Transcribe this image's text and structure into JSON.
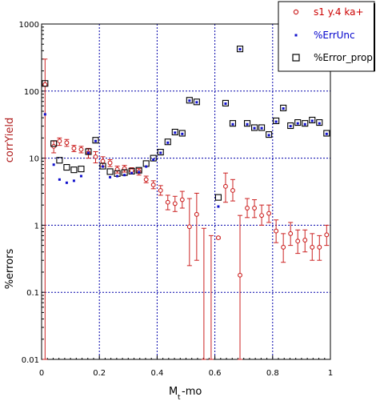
{
  "chart_data": {
    "type": "scatter",
    "xlabel": "M",
    "xlabel_sub": "t",
    "xlabel_suffix": "-mo",
    "ylabel_top": "corrYield",
    "ylabel_bottom": "%errors",
    "xlim": [
      0,
      1
    ],
    "ylim": [
      0.01,
      1000
    ],
    "yscale": "log",
    "grid": true,
    "legend_position": "top-right",
    "x_ticks": [
      "0",
      "0.2",
      "0.4",
      "0.6",
      "0.8",
      "1"
    ],
    "x_tick_values": [
      0,
      0.2,
      0.4,
      0.6,
      0.8,
      1
    ],
    "y_ticks": [
      "0.01",
      "0.1",
      "1",
      "10",
      "100",
      "1000"
    ],
    "y_tick_values": [
      0.01,
      0.1,
      1,
      10,
      100,
      1000
    ],
    "colors": {
      "s1": "#cc2222",
      "errunc": "#1010cc",
      "errprop": "#000000",
      "grid": "#0000aa"
    },
    "series": [
      {
        "name": "s1 y.4 ka+",
        "marker": "open-circle",
        "points": [
          {
            "x": 0.012,
            "y": 125,
            "lo": 0.01,
            "hi": 300
          },
          {
            "x": 0.042,
            "y": 15,
            "lo": 12,
            "hi": 18
          },
          {
            "x": 0.062,
            "y": 18,
            "lo": 15.5,
            "hi": 20
          },
          {
            "x": 0.087,
            "y": 17,
            "lo": 15,
            "hi": 19
          },
          {
            "x": 0.112,
            "y": 14,
            "lo": 12.5,
            "hi": 15.5
          },
          {
            "x": 0.137,
            "y": 13.5,
            "lo": 12,
            "hi": 15
          },
          {
            "x": 0.162,
            "y": 12,
            "lo": 10,
            "hi": 14
          },
          {
            "x": 0.187,
            "y": 10.5,
            "lo": 8.5,
            "hi": 12.5
          },
          {
            "x": 0.212,
            "y": 9,
            "lo": 7.5,
            "hi": 10.5
          },
          {
            "x": 0.237,
            "y": 8.5,
            "lo": 7.5,
            "hi": 9.5
          },
          {
            "x": 0.262,
            "y": 6.8,
            "lo": 6,
            "hi": 7.6
          },
          {
            "x": 0.287,
            "y": 7,
            "lo": 6.2,
            "hi": 7.8
          },
          {
            "x": 0.312,
            "y": 6.5,
            "lo": 5.8,
            "hi": 7.2
          },
          {
            "x": 0.337,
            "y": 6.3,
            "lo": 5.6,
            "hi": 7.0
          },
          {
            "x": 0.362,
            "y": 4.8,
            "lo": 4.3,
            "hi": 5.4
          },
          {
            "x": 0.387,
            "y": 4,
            "lo": 3.5,
            "hi": 4.6
          },
          {
            "x": 0.412,
            "y": 3.3,
            "lo": 2.8,
            "hi": 3.9
          },
          {
            "x": 0.437,
            "y": 2.2,
            "lo": 1.7,
            "hi": 2.8
          },
          {
            "x": 0.462,
            "y": 2.1,
            "lo": 1.6,
            "hi": 2.7
          },
          {
            "x": 0.487,
            "y": 2.4,
            "lo": 1.8,
            "hi": 3.2
          },
          {
            "x": 0.512,
            "y": 0.95,
            "lo": 0.25,
            "hi": 2.5
          },
          {
            "x": 0.537,
            "y": 1.45,
            "lo": 0.3,
            "hi": 3.0
          },
          {
            "x": 0.562,
            "y": 0.01,
            "lo": 0.01,
            "hi": 0.9
          },
          {
            "x": 0.587,
            "y": 0.01,
            "lo": 0.01,
            "hi": 0.7
          },
          {
            "x": 0.612,
            "y": 0.65,
            "lo": 0.63,
            "hi": 0.67
          },
          {
            "x": 0.637,
            "y": 3.8,
            "lo": 2.2,
            "hi": 6.0
          },
          {
            "x": 0.662,
            "y": 3.3,
            "lo": 2.3,
            "hi": 4.8
          },
          {
            "x": 0.687,
            "y": 0.18,
            "lo": 0.01,
            "hi": 1.4
          },
          {
            "x": 0.712,
            "y": 1.8,
            "lo": 1.3,
            "hi": 2.5
          },
          {
            "x": 0.737,
            "y": 1.8,
            "lo": 1.3,
            "hi": 2.4
          },
          {
            "x": 0.762,
            "y": 1.4,
            "lo": 1.0,
            "hi": 2.0
          },
          {
            "x": 0.787,
            "y": 1.5,
            "lo": 1.1,
            "hi": 2.0
          },
          {
            "x": 0.812,
            "y": 0.82,
            "lo": 0.55,
            "hi": 1.2
          },
          {
            "x": 0.837,
            "y": 0.47,
            "lo": 0.28,
            "hi": 0.75
          },
          {
            "x": 0.862,
            "y": 0.75,
            "lo": 0.5,
            "hi": 1.1
          },
          {
            "x": 0.887,
            "y": 0.58,
            "lo": 0.38,
            "hi": 0.85
          },
          {
            "x": 0.912,
            "y": 0.6,
            "lo": 0.4,
            "hi": 0.85
          },
          {
            "x": 0.937,
            "y": 0.47,
            "lo": 0.3,
            "hi": 0.75
          },
          {
            "x": 0.962,
            "y": 0.47,
            "lo": 0.3,
            "hi": 0.7
          },
          {
            "x": 0.987,
            "y": 0.72,
            "lo": 0.5,
            "hi": 1.0
          }
        ]
      },
      {
        "name": "%ErrUnc",
        "marker": "small-square",
        "points": [
          {
            "x": 0.012,
            "y": 45
          },
          {
            "x": 0.042,
            "y": 8
          },
          {
            "x": 0.062,
            "y": 4.8
          },
          {
            "x": 0.087,
            "y": 4.3
          },
          {
            "x": 0.112,
            "y": 4.6
          },
          {
            "x": 0.137,
            "y": 5.4
          },
          {
            "x": 0.162,
            "y": 12
          },
          {
            "x": 0.187,
            "y": 18
          },
          {
            "x": 0.212,
            "y": 7.5
          },
          {
            "x": 0.237,
            "y": 5.2
          },
          {
            "x": 0.262,
            "y": 5.4
          },
          {
            "x": 0.287,
            "y": 5.6
          },
          {
            "x": 0.312,
            "y": 6
          },
          {
            "x": 0.337,
            "y": 6.2
          },
          {
            "x": 0.362,
            "y": 7.5
          },
          {
            "x": 0.387,
            "y": 9.5
          },
          {
            "x": 0.412,
            "y": 12
          },
          {
            "x": 0.437,
            "y": 17
          },
          {
            "x": 0.462,
            "y": 24
          },
          {
            "x": 0.487,
            "y": 23
          },
          {
            "x": 0.512,
            "y": 72
          },
          {
            "x": 0.537,
            "y": 68
          },
          {
            "x": 0.612,
            "y": 1.9
          },
          {
            "x": 0.637,
            "y": 65
          },
          {
            "x": 0.662,
            "y": 32
          },
          {
            "x": 0.687,
            "y": 420
          },
          {
            "x": 0.712,
            "y": 32
          },
          {
            "x": 0.737,
            "y": 28
          },
          {
            "x": 0.762,
            "y": 28
          },
          {
            "x": 0.787,
            "y": 22
          },
          {
            "x": 0.812,
            "y": 35
          },
          {
            "x": 0.837,
            "y": 55
          },
          {
            "x": 0.862,
            "y": 30
          },
          {
            "x": 0.887,
            "y": 33
          },
          {
            "x": 0.912,
            "y": 32
          },
          {
            "x": 0.937,
            "y": 36
          },
          {
            "x": 0.962,
            "y": 33
          },
          {
            "x": 0.987,
            "y": 23
          }
        ]
      },
      {
        "name": "%Error_prop",
        "marker": "open-square",
        "points": [
          {
            "x": 0.012,
            "y": 130
          },
          {
            "x": 0.042,
            "y": 16.5
          },
          {
            "x": 0.062,
            "y": 9.3
          },
          {
            "x": 0.087,
            "y": 7.3
          },
          {
            "x": 0.112,
            "y": 6.7
          },
          {
            "x": 0.137,
            "y": 6.9
          },
          {
            "x": 0.162,
            "y": 12.5
          },
          {
            "x": 0.187,
            "y": 18.5
          },
          {
            "x": 0.212,
            "y": 7.6
          },
          {
            "x": 0.237,
            "y": 6.3
          },
          {
            "x": 0.262,
            "y": 5.9
          },
          {
            "x": 0.287,
            "y": 6.1
          },
          {
            "x": 0.312,
            "y": 6.4
          },
          {
            "x": 0.337,
            "y": 6.6
          },
          {
            "x": 0.362,
            "y": 8.3
          },
          {
            "x": 0.387,
            "y": 10
          },
          {
            "x": 0.412,
            "y": 12.3
          },
          {
            "x": 0.437,
            "y": 17.5
          },
          {
            "x": 0.462,
            "y": 24.5
          },
          {
            "x": 0.487,
            "y": 23.5
          },
          {
            "x": 0.512,
            "y": 73
          },
          {
            "x": 0.537,
            "y": 69
          },
          {
            "x": 0.612,
            "y": 2.6
          },
          {
            "x": 0.637,
            "y": 66
          },
          {
            "x": 0.662,
            "y": 33
          },
          {
            "x": 0.687,
            "y": 425
          },
          {
            "x": 0.712,
            "y": 33
          },
          {
            "x": 0.737,
            "y": 28.5
          },
          {
            "x": 0.762,
            "y": 28.5
          },
          {
            "x": 0.787,
            "y": 22.5
          },
          {
            "x": 0.812,
            "y": 36
          },
          {
            "x": 0.837,
            "y": 56
          },
          {
            "x": 0.862,
            "y": 30.5
          },
          {
            "x": 0.887,
            "y": 34
          },
          {
            "x": 0.912,
            "y": 33
          },
          {
            "x": 0.937,
            "y": 37
          },
          {
            "x": 0.962,
            "y": 34
          },
          {
            "x": 0.987,
            "y": 23.5
          }
        ]
      }
    ]
  }
}
